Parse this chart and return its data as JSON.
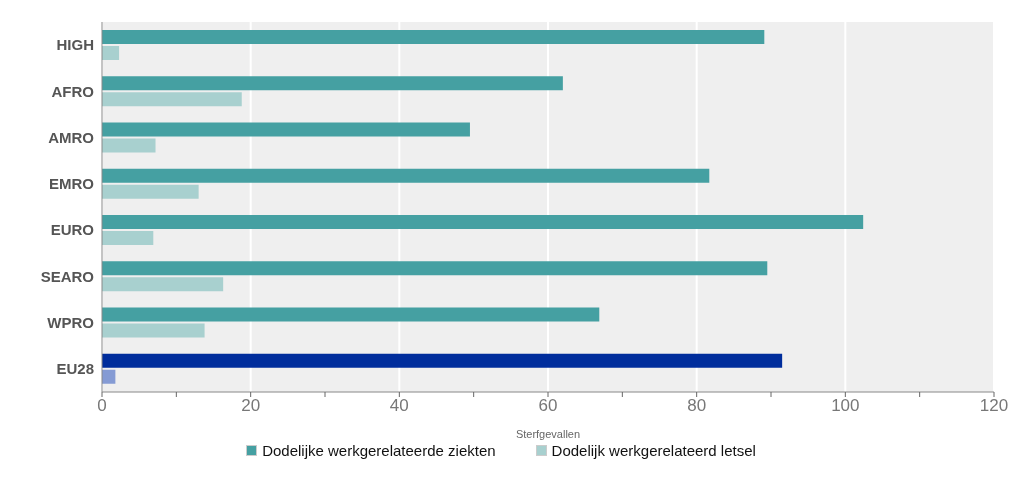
{
  "chart_data": {
    "type": "bar",
    "orientation": "horizontal",
    "xlabel": "Sterfgevallen",
    "categories": [
      "HIGH",
      "AFRO",
      "AMRO",
      "EMRO",
      "EURO",
      "SEARO",
      "WPRO",
      "EU28"
    ],
    "series": [
      {
        "name": "Dodelijke werkgerelateerde ziekten",
        "color": "#45a0a2",
        "colors": [
          "#45a0a2",
          "#45a0a2",
          "#45a0a2",
          "#45a0a2",
          "#45a0a2",
          "#45a0a2",
          "#45a0a2",
          "#002d9c"
        ],
        "values": [
          89.1,
          62.0,
          49.5,
          81.7,
          102.4,
          89.5,
          66.9,
          91.5
        ]
      },
      {
        "name": "Dodelijk werkgerelateerd letsel",
        "color": "#a8d0cf",
        "colors": [
          "#a8d0cf",
          "#a8d0cf",
          "#a8d0cf",
          "#a8d0cf",
          "#a8d0cf",
          "#a8d0cf",
          "#a8d0cf",
          "#859bd4"
        ],
        "values": [
          2.3,
          18.8,
          7.2,
          13.0,
          6.9,
          16.3,
          13.8,
          1.8
        ]
      }
    ],
    "xlim": [
      0,
      120
    ],
    "xticks": [
      0,
      {
        "value": 10,
        "label": null
      },
      20,
      {
        "value": 30,
        "label": null
      },
      40,
      {
        "value": 50,
        "label": null
      },
      60,
      {
        "value": 70,
        "label": null
      },
      80,
      {
        "value": 90,
        "label": null
      },
      100,
      {
        "value": 110,
        "label": null
      },
      120
    ],
    "grid": "x",
    "legend": "bottom"
  }
}
